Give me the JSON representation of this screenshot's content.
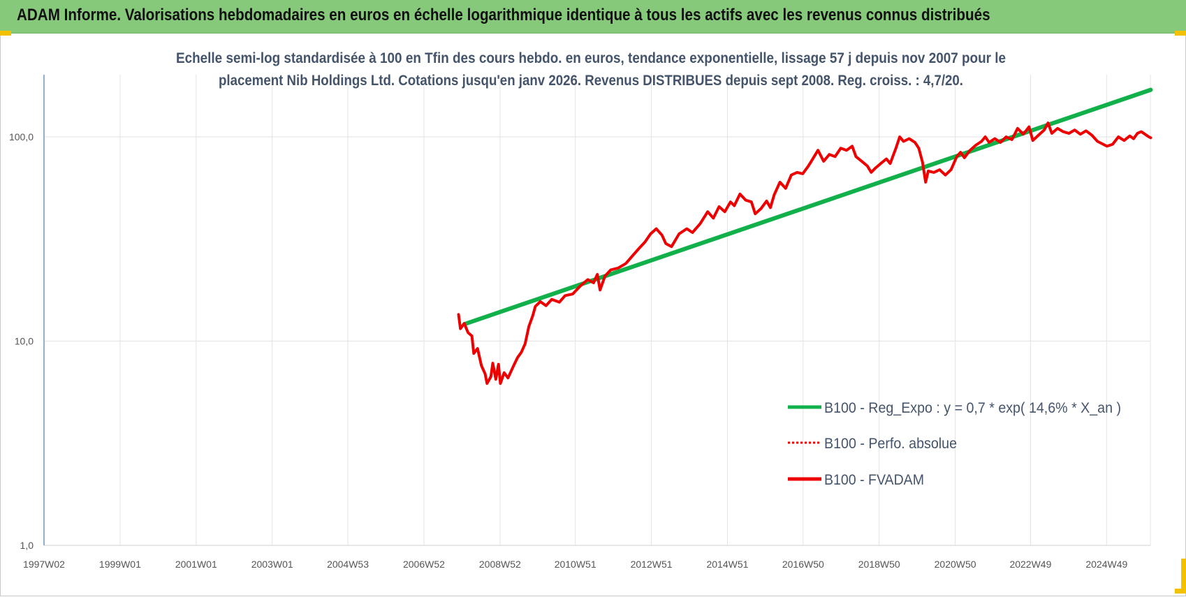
{
  "header": {
    "title": "ADAM Informe. Valorisations hebdomadaires en euros en échelle logarithmique identique à tous les actifs avec les revenus connus distribués"
  },
  "colors": {
    "header_bg": "#86c97a",
    "regression": "#12b04a",
    "fvadam": "#ee0000",
    "perfo": "#ee0000",
    "accent_corners": "#f2c200"
  },
  "chart_data": {
    "type": "line",
    "title_lines": [
      "Echelle semi-log standardisée à 100 en Tfin des cours hebdo. en euros, tendance exponentielle, lissage 57 j depuis nov 2007 pour le",
      "placement Nib Holdings Ltd. Cotations jusqu'en janv 2026. Revenus DISTRIBUES depuis sept 2008. Reg. croiss. : 4,7/20."
    ],
    "y_scale": "log",
    "ylim": [
      1,
      190
    ],
    "y_ticks": [
      {
        "value": 1,
        "label": "1,0"
      },
      {
        "value": 10,
        "label": "10,0"
      },
      {
        "value": 100,
        "label": "100,0"
      }
    ],
    "xlim": [
      1997.0,
      2026.1
    ],
    "x_ticks": [
      {
        "value": 1997.0,
        "label": "1997W02"
      },
      {
        "value": 1999.0,
        "label": "1999W01"
      },
      {
        "value": 2001.0,
        "label": "2001W01"
      },
      {
        "value": 2003.0,
        "label": "2003W01"
      },
      {
        "value": 2004.99,
        "label": "2004W53"
      },
      {
        "value": 2006.99,
        "label": "2006W52"
      },
      {
        "value": 2008.99,
        "label": "2008W52"
      },
      {
        "value": 2010.97,
        "label": "2010W51"
      },
      {
        "value": 2012.97,
        "label": "2012W51"
      },
      {
        "value": 2014.97,
        "label": "2014W51"
      },
      {
        "value": 2016.96,
        "label": "2016W50"
      },
      {
        "value": 2018.96,
        "label": "2018W50"
      },
      {
        "value": 2020.96,
        "label": "2020W50"
      },
      {
        "value": 2022.94,
        "label": "2022W49"
      },
      {
        "value": 2024.94,
        "label": "2024W49"
      }
    ],
    "legend_position": "center-right",
    "series": [
      {
        "name": "B100 - Reg_Expo : y = 0,7 * exp( 14,6% *  X_an )",
        "style": "solid",
        "color": "#12b04a",
        "points": [
          [
            2008.05,
            12.1
          ],
          [
            2026.1,
            170
          ]
        ]
      },
      {
        "name": "B100 - Perfo. absolue",
        "style": "dotted",
        "color": "#ee0000",
        "points": []
      },
      {
        "name": "B100 - FVADAM",
        "style": "solid",
        "color": "#ee0000",
        "points": [
          [
            2007.9,
            13.5
          ],
          [
            2007.95,
            11.5
          ],
          [
            2008.05,
            12.2
          ],
          [
            2008.15,
            11.0
          ],
          [
            2008.25,
            10.6
          ],
          [
            2008.3,
            8.7
          ],
          [
            2008.4,
            9.2
          ],
          [
            2008.5,
            7.6
          ],
          [
            2008.6,
            6.9
          ],
          [
            2008.65,
            6.2
          ],
          [
            2008.75,
            6.7
          ],
          [
            2008.8,
            7.8
          ],
          [
            2008.88,
            6.5
          ],
          [
            2008.95,
            7.7
          ],
          [
            2009.0,
            6.2
          ],
          [
            2009.1,
            7.0
          ],
          [
            2009.2,
            6.6
          ],
          [
            2009.35,
            7.6
          ],
          [
            2009.45,
            8.3
          ],
          [
            2009.55,
            8.8
          ],
          [
            2009.65,
            9.7
          ],
          [
            2009.75,
            11.8
          ],
          [
            2009.85,
            13.3
          ],
          [
            2009.92,
            14.8
          ],
          [
            2010.05,
            15.6
          ],
          [
            2010.2,
            14.9
          ],
          [
            2010.35,
            16.0
          ],
          [
            2010.55,
            15.5
          ],
          [
            2010.7,
            16.7
          ],
          [
            2010.9,
            17.0
          ],
          [
            2011.1,
            18.6
          ],
          [
            2011.3,
            20.0
          ],
          [
            2011.45,
            19.3
          ],
          [
            2011.55,
            21.2
          ],
          [
            2011.62,
            17.8
          ],
          [
            2011.75,
            20.8
          ],
          [
            2011.9,
            22.3
          ],
          [
            2012.1,
            22.8
          ],
          [
            2012.3,
            24.0
          ],
          [
            2012.5,
            26.5
          ],
          [
            2012.65,
            28.5
          ],
          [
            2012.8,
            30.5
          ],
          [
            2012.95,
            33.5
          ],
          [
            2013.1,
            35.5
          ],
          [
            2013.25,
            33.0
          ],
          [
            2013.35,
            30.0
          ],
          [
            2013.5,
            29.0
          ],
          [
            2013.7,
            33.5
          ],
          [
            2013.9,
            35.5
          ],
          [
            2014.05,
            34.0
          ],
          [
            2014.25,
            37.5
          ],
          [
            2014.45,
            43.0
          ],
          [
            2014.6,
            40.0
          ],
          [
            2014.75,
            45.5
          ],
          [
            2014.9,
            43.0
          ],
          [
            2015.05,
            48.0
          ],
          [
            2015.15,
            46.0
          ],
          [
            2015.3,
            52.5
          ],
          [
            2015.45,
            49.0
          ],
          [
            2015.6,
            48.0
          ],
          [
            2015.7,
            42.0
          ],
          [
            2015.85,
            44.5
          ],
          [
            2016.0,
            48.5
          ],
          [
            2016.1,
            45.0
          ],
          [
            2016.2,
            52.0
          ],
          [
            2016.35,
            60.0
          ],
          [
            2016.5,
            56.0
          ],
          [
            2016.65,
            65.0
          ],
          [
            2016.8,
            67.0
          ],
          [
            2016.95,
            66.0
          ],
          [
            2017.1,
            72.0
          ],
          [
            2017.25,
            80.0
          ],
          [
            2017.35,
            86.0
          ],
          [
            2017.5,
            76.0
          ],
          [
            2017.65,
            82.0
          ],
          [
            2017.8,
            80.0
          ],
          [
            2017.95,
            88.0
          ],
          [
            2018.1,
            86.0
          ],
          [
            2018.25,
            90.0
          ],
          [
            2018.35,
            80.0
          ],
          [
            2018.5,
            76.0
          ],
          [
            2018.65,
            72.0
          ],
          [
            2018.75,
            67.0
          ],
          [
            2018.85,
            70.0
          ],
          [
            2019.0,
            74.0
          ],
          [
            2019.15,
            78.0
          ],
          [
            2019.25,
            74.0
          ],
          [
            2019.4,
            88.0
          ],
          [
            2019.5,
            100.0
          ],
          [
            2019.6,
            95.0
          ],
          [
            2019.75,
            98.0
          ],
          [
            2019.9,
            94.0
          ],
          [
            2020.0,
            88.0
          ],
          [
            2020.1,
            75.0
          ],
          [
            2020.18,
            60.0
          ],
          [
            2020.25,
            68.0
          ],
          [
            2020.4,
            67.0
          ],
          [
            2020.55,
            69.0
          ],
          [
            2020.7,
            65.0
          ],
          [
            2020.85,
            69.0
          ],
          [
            2021.0,
            80.0
          ],
          [
            2021.1,
            84.0
          ],
          [
            2021.2,
            79.0
          ],
          [
            2021.35,
            86.0
          ],
          [
            2021.5,
            91.0
          ],
          [
            2021.65,
            95.0
          ],
          [
            2021.75,
            100.0
          ],
          [
            2021.85,
            94.0
          ],
          [
            2022.0,
            98.0
          ],
          [
            2022.15,
            94.0
          ],
          [
            2022.3,
            100.0
          ],
          [
            2022.45,
            97.0
          ],
          [
            2022.6,
            110.0
          ],
          [
            2022.75,
            103.0
          ],
          [
            2022.9,
            112.0
          ],
          [
            2023.0,
            96.0
          ],
          [
            2023.15,
            102.0
          ],
          [
            2023.3,
            108.0
          ],
          [
            2023.4,
            117.0
          ],
          [
            2023.5,
            104.0
          ],
          [
            2023.65,
            110.0
          ],
          [
            2023.8,
            106.0
          ],
          [
            2023.95,
            104.0
          ],
          [
            2024.1,
            108.0
          ],
          [
            2024.25,
            103.0
          ],
          [
            2024.4,
            107.0
          ],
          [
            2024.55,
            102.0
          ],
          [
            2024.7,
            95.0
          ],
          [
            2024.85,
            92.0
          ],
          [
            2024.95,
            90.0
          ],
          [
            2025.1,
            92.0
          ],
          [
            2025.25,
            100.0
          ],
          [
            2025.4,
            96.0
          ],
          [
            2025.55,
            101.0
          ],
          [
            2025.65,
            98.0
          ],
          [
            2025.75,
            104.0
          ],
          [
            2025.85,
            106.0
          ],
          [
            2025.95,
            103.0
          ],
          [
            2026.05,
            100.0
          ],
          [
            2026.1,
            99.0
          ]
        ]
      }
    ]
  }
}
